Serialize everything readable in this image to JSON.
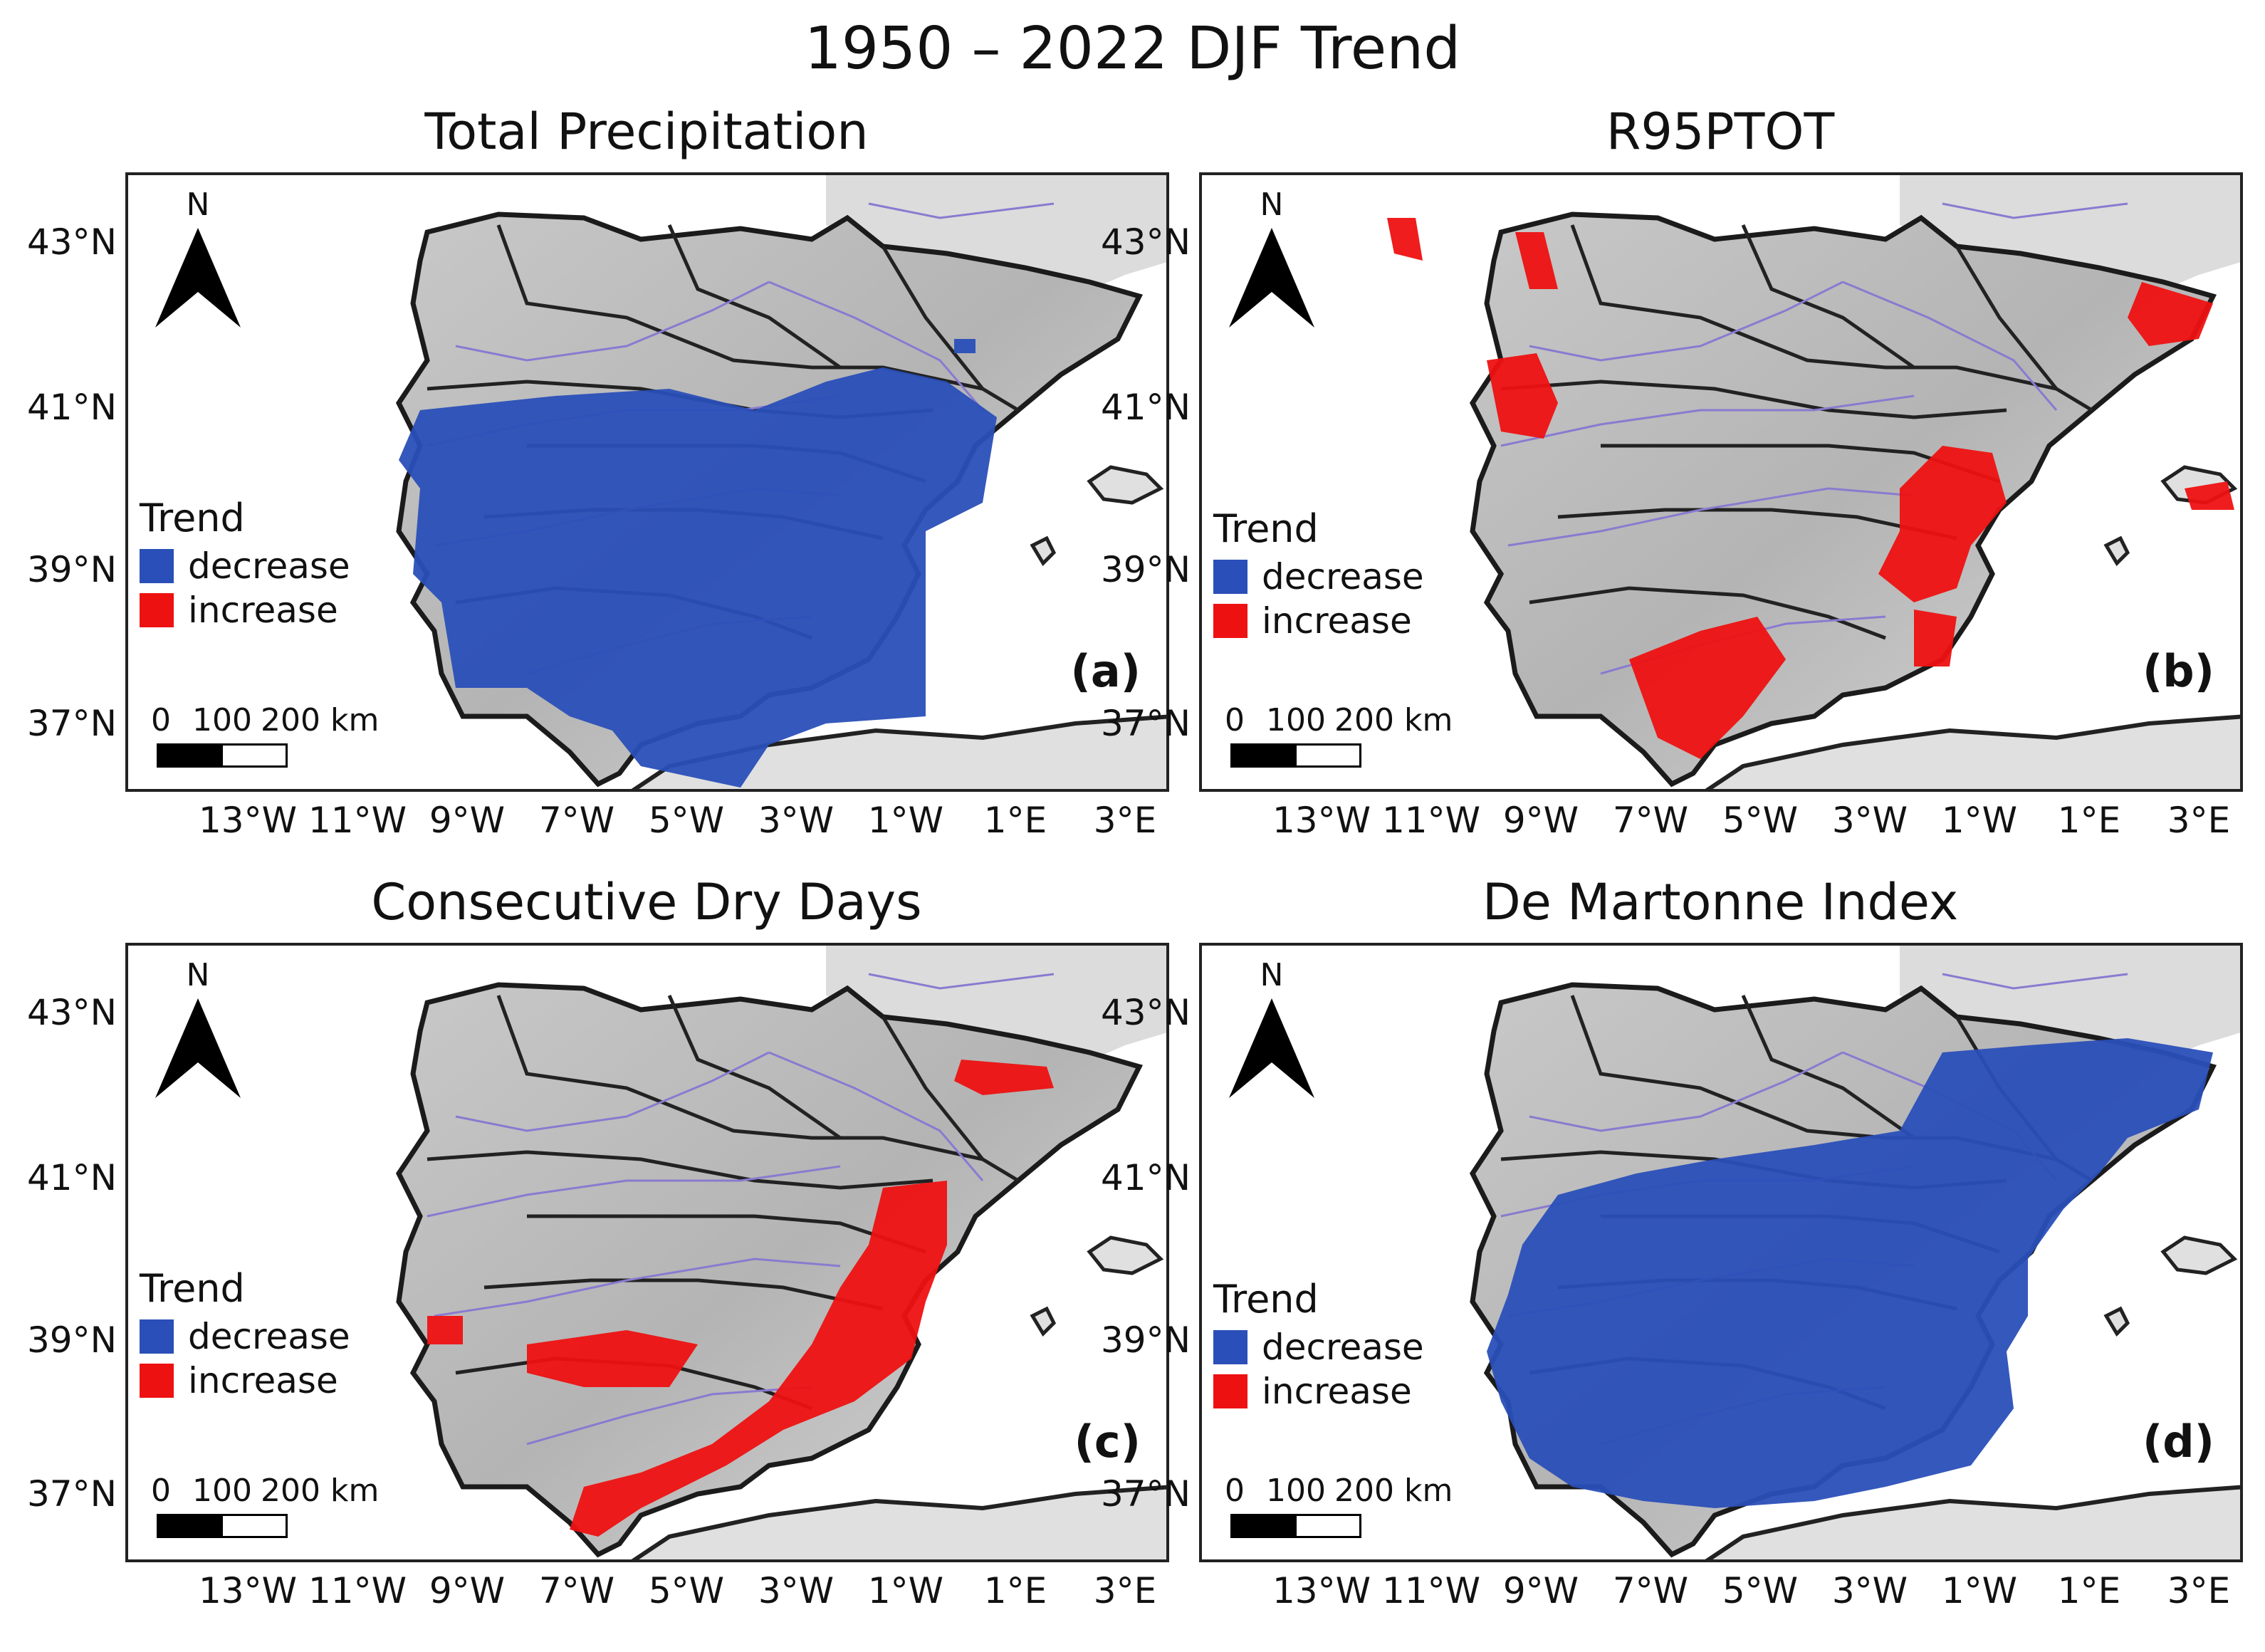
{
  "title": "1950 – 2022 DJF Trend",
  "colors": {
    "decrease": "#2a4fb8",
    "increase": "#ee1111",
    "river": "#8a7ad0",
    "land": "#d2d2d2",
    "sea": "#ffffff"
  },
  "lat_labels": [
    "43°N",
    "41°N",
    "39°N",
    "37°N"
  ],
  "lon_labels": [
    "13°W",
    "11°W",
    "9°W",
    "7°W",
    "5°W",
    "3°W",
    "1°W",
    "1°E",
    "3°E"
  ],
  "north_label": "N",
  "legend": {
    "title": "Trend",
    "decrease": "decrease",
    "increase": "increase"
  },
  "scalebar": {
    "l0": "0",
    "l1": "100",
    "l2": "200 km"
  },
  "panels": [
    {
      "title": "Total Precipitation",
      "label": "(a)"
    },
    {
      "title": "R95PTOT",
      "label": "(b)"
    },
    {
      "title": "Consecutive Dry Days",
      "label": "(c)"
    },
    {
      "title": "De Martonne Index",
      "label": "(d)"
    }
  ]
}
